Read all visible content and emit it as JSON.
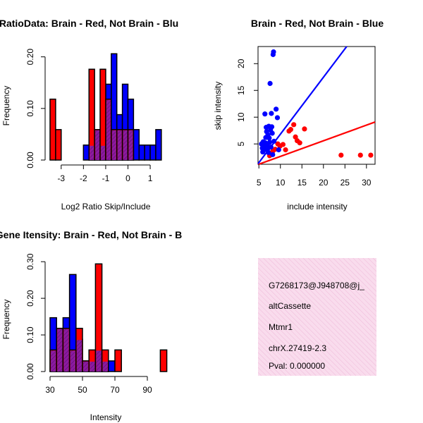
{
  "colors": {
    "red": "#ff0000",
    "blue": "#0000ff",
    "overlap": "#8b1aa0",
    "info_bg": "#f9dced",
    "info_hatch": "#efb8d8",
    "pval": "#b00000"
  },
  "chart_data": [
    {
      "id": "ratio_hist",
      "type": "bar",
      "title": "RatioData: Brain - Red, Not Brain - Blu",
      "xlabel": "Log2 Ratio Skip/Include",
      "ylabel": "Frequency",
      "xlim": [
        -3.5,
        1.6
      ],
      "ylim": [
        0,
        0.22
      ],
      "x_ticks": [
        -3,
        -2,
        -1,
        0,
        1
      ],
      "x_tick_labels": [
        "-3",
        "-2",
        "-1",
        "0",
        "1"
      ],
      "y_ticks": [
        0,
        0.1,
        0.2
      ],
      "y_tick_labels": [
        "0.00",
        "0.10",
        "0.20"
      ],
      "bin_edges": [
        -3.5,
        -3.25,
        -3.0,
        -2.75,
        -2.5,
        -2.25,
        -2.0,
        -1.75,
        -1.5,
        -1.25,
        -1.0,
        -0.75,
        -0.5,
        -0.25,
        0.0,
        0.25,
        0.5,
        0.75,
        1.0,
        1.25,
        1.5
      ],
      "series": [
        {
          "name": "Brain",
          "color": "red",
          "values": [
            0.118,
            0.059,
            0,
            0,
            0,
            0,
            0,
            0.176,
            0.059,
            0.176,
            0.118,
            0.059,
            0.059,
            0.059,
            0.059,
            0,
            0,
            0,
            0,
            0
          ]
        },
        {
          "name": "Not Brain",
          "color": "blue",
          "values": [
            0,
            0,
            0,
            0,
            0,
            0,
            0.029,
            0.029,
            0.059,
            0.029,
            0.147,
            0.206,
            0.088,
            0.147,
            0.118,
            0.059,
            0.029,
            0.029,
            0.029,
            0.059
          ]
        }
      ]
    },
    {
      "id": "intensity_scatter",
      "type": "scatter",
      "title": "Brain - Red, Not Brain - Blue",
      "xlabel": "include intensity",
      "ylabel": "skip intensity",
      "xlim": [
        4.8,
        32
      ],
      "ylim": [
        1.2,
        23.2
      ],
      "x_ticks": [
        5,
        10,
        15,
        20,
        25,
        30
      ],
      "x_tick_labels": [
        "5",
        "10",
        "15",
        "20",
        "25",
        "30"
      ],
      "y_ticks": [
        5,
        10,
        15,
        20
      ],
      "y_tick_labels": [
        "5",
        "10",
        "15",
        "20"
      ],
      "series": [
        {
          "name": "Brain",
          "color": "red",
          "points": [
            [
              7.5,
              2.8
            ],
            [
              8.2,
              3.6
            ],
            [
              8.8,
              4.0
            ],
            [
              9.4,
              5.0
            ],
            [
              9.9,
              4.6
            ],
            [
              10.6,
              4.9
            ],
            [
              11.2,
              3.9
            ],
            [
              12.0,
              7.4
            ],
            [
              12.4,
              7.7
            ],
            [
              13.1,
              8.6
            ],
            [
              13.5,
              6.3
            ],
            [
              13.9,
              5.6
            ],
            [
              14.5,
              5.2
            ],
            [
              15.6,
              7.8
            ],
            [
              24.1,
              2.9
            ],
            [
              28.6,
              2.9
            ],
            [
              31.0,
              2.9
            ]
          ],
          "fit_line": [
            [
              4.8,
              1.15
            ],
            [
              32.0,
              9.1
            ]
          ]
        },
        {
          "name": "Not Brain",
          "color": "blue",
          "points": [
            [
              5.6,
              5.0
            ],
            [
              5.8,
              4.2
            ],
            [
              5.9,
              3.5
            ],
            [
              6.0,
              5.4
            ],
            [
              6.2,
              4.6
            ],
            [
              6.3,
              3.9
            ],
            [
              6.4,
              10.6
            ],
            [
              6.5,
              5.2
            ],
            [
              6.6,
              6.2
            ],
            [
              6.7,
              8.1
            ],
            [
              6.8,
              7.3
            ],
            [
              6.9,
              4.8
            ],
            [
              7.0,
              4.0
            ],
            [
              7.1,
              6.7
            ],
            [
              7.2,
              3.4
            ],
            [
              7.3,
              8.3
            ],
            [
              7.4,
              6.1
            ],
            [
              7.5,
              5.3
            ],
            [
              7.6,
              16.3
            ],
            [
              7.7,
              7.6
            ],
            [
              7.8,
              4.4
            ],
            [
              7.9,
              10.7
            ],
            [
              8.0,
              8.2
            ],
            [
              8.1,
              7.0
            ],
            [
              8.2,
              3.0
            ],
            [
              8.3,
              21.7
            ],
            [
              8.4,
              22.2
            ],
            [
              8.5,
              5.5
            ],
            [
              9.0,
              11.5
            ],
            [
              9.3,
              9.9
            ],
            [
              9.6,
              3.9
            ]
          ],
          "fit_line": [
            [
              4.8,
              1.3
            ],
            [
              25.4,
              23.2
            ]
          ]
        }
      ]
    },
    {
      "id": "intensity_hist",
      "type": "bar",
      "title": "Gene Itensity: Brain - Red, Not Brain - B",
      "xlabel": "Intensity",
      "ylabel": "Frequency",
      "xlim": [
        30,
        100
      ],
      "ylim": [
        0,
        0.31
      ],
      "x_ticks": [
        30,
        50,
        70,
        90
      ],
      "x_tick_labels": [
        "30",
        "50",
        "70",
        "90"
      ],
      "y_ticks": [
        0,
        0.1,
        0.2,
        0.3
      ],
      "y_tick_labels": [
        "0.00",
        "0.10",
        "0.20",
        "0.30"
      ],
      "bin_edges": [
        30,
        34,
        38,
        42,
        46,
        50,
        54,
        58,
        62,
        66,
        70,
        74,
        78,
        82,
        86,
        90,
        94,
        98,
        102
      ],
      "series": [
        {
          "name": "Brain",
          "color": "red",
          "values": [
            0.059,
            0.118,
            0.118,
            0.059,
            0.118,
            0.029,
            0.059,
            0.294,
            0.059,
            0,
            0.059,
            0,
            0,
            0,
            0,
            0,
            0,
            0.059
          ]
        },
        {
          "name": "Not Brain",
          "color": "blue",
          "values": [
            0.147,
            0.118,
            0.147,
            0.265,
            0.088,
            0.029,
            0.029,
            0.059,
            0.029,
            0.029,
            0,
            0,
            0,
            0,
            0,
            0,
            0,
            0
          ]
        }
      ]
    }
  ],
  "info_panel": {
    "event_id": "G7268173@J948708@j_",
    "event_type": "altCassette",
    "gene": "Mtmr1",
    "location": "chrX.27419-2.3",
    "pval": "Pval: 0.000000"
  }
}
